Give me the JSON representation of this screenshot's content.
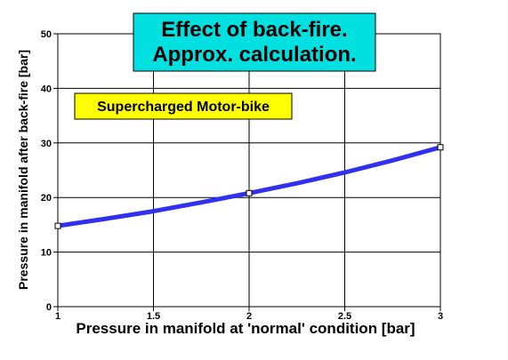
{
  "chart_data": {
    "type": "line",
    "title_lines": [
      "Effect of back-fire.",
      "Approx. calculation."
    ],
    "annotation": "Supercharged Motor-bike",
    "xlabel": "Pressure in manifold at 'normal' condition [bar]",
    "ylabel": "Pressure in manifold after back-fire [bar]",
    "xlim": [
      1,
      3
    ],
    "ylim": [
      0,
      50
    ],
    "xticks": [
      "1",
      "1.5",
      "2",
      "2.5",
      "3"
    ],
    "xtick_values": [
      1,
      1.5,
      2,
      2.5,
      3
    ],
    "yticks": [
      "0",
      "10",
      "20",
      "30",
      "40",
      "50"
    ],
    "ytick_values": [
      0,
      10,
      20,
      30,
      40,
      50
    ],
    "grid": true,
    "series": [
      {
        "x": [
          1,
          1.25,
          1.5,
          1.75,
          2,
          2.25,
          2.5,
          2.75,
          3
        ],
        "y": [
          14.8,
          16.1,
          17.5,
          19.1,
          20.8,
          22.6,
          24.6,
          26.8,
          29.2
        ],
        "color": "#3030ee",
        "markers_x": [
          1,
          2,
          3
        ],
        "markers_y": [
          14.8,
          20.8,
          29.2
        ]
      }
    ],
    "colors": {
      "title_box": "#00e0e0",
      "annotation_box": "#ffff00",
      "line": "#3030ee"
    }
  }
}
